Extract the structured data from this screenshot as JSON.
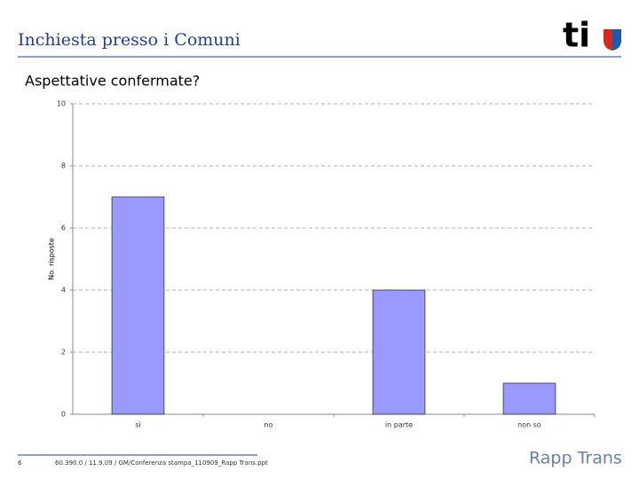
{
  "header": {
    "title": "Inchiesta presso i Comuni",
    "logo": "ti"
  },
  "chart_data": {
    "type": "bar",
    "title": "Aspettative confermate?",
    "y_label": "No. risposte",
    "categories": [
      "sì",
      "no",
      "in parte",
      "non so"
    ],
    "values": [
      7,
      0,
      4,
      1
    ],
    "color": "#9999ff",
    "ylim": [
      0,
      10
    ],
    "yticks": [
      0,
      2,
      4,
      6,
      8,
      10
    ],
    "grid": true
  },
  "footer": {
    "page": "6",
    "reference": "60.390.0 / 11.9.09 / GM/Conferenza stampa_110909_Rapp Trans.ppt",
    "logo": "Rapp Trans"
  }
}
